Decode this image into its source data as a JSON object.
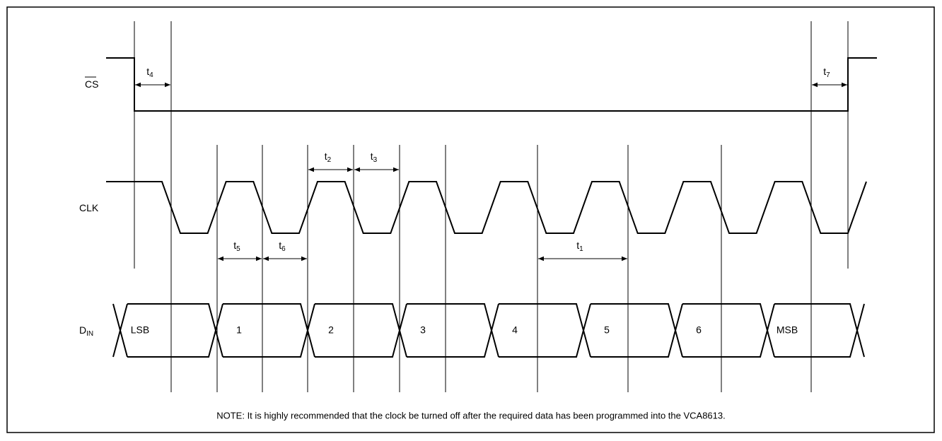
{
  "signals": [
    {
      "label": "CS"
    },
    {
      "label": "CLK"
    },
    {
      "label": "D",
      "sub": "IN"
    }
  ],
  "timings": [
    {
      "label": "t",
      "sub": "4"
    },
    {
      "label": "t",
      "sub": "7"
    },
    {
      "label": "t",
      "sub": "2"
    },
    {
      "label": "t",
      "sub": "3"
    },
    {
      "label": "t",
      "sub": "5"
    },
    {
      "label": "t",
      "sub": "6"
    },
    {
      "label": "t",
      "sub": "1"
    }
  ],
  "data_cells": [
    "LSB",
    "1",
    "2",
    "3",
    "4",
    "5",
    "6",
    "MSB"
  ],
  "note": "NOTE: It is highly recommended that the clock be turned off after the required data has been programmed into the VCA8613."
}
